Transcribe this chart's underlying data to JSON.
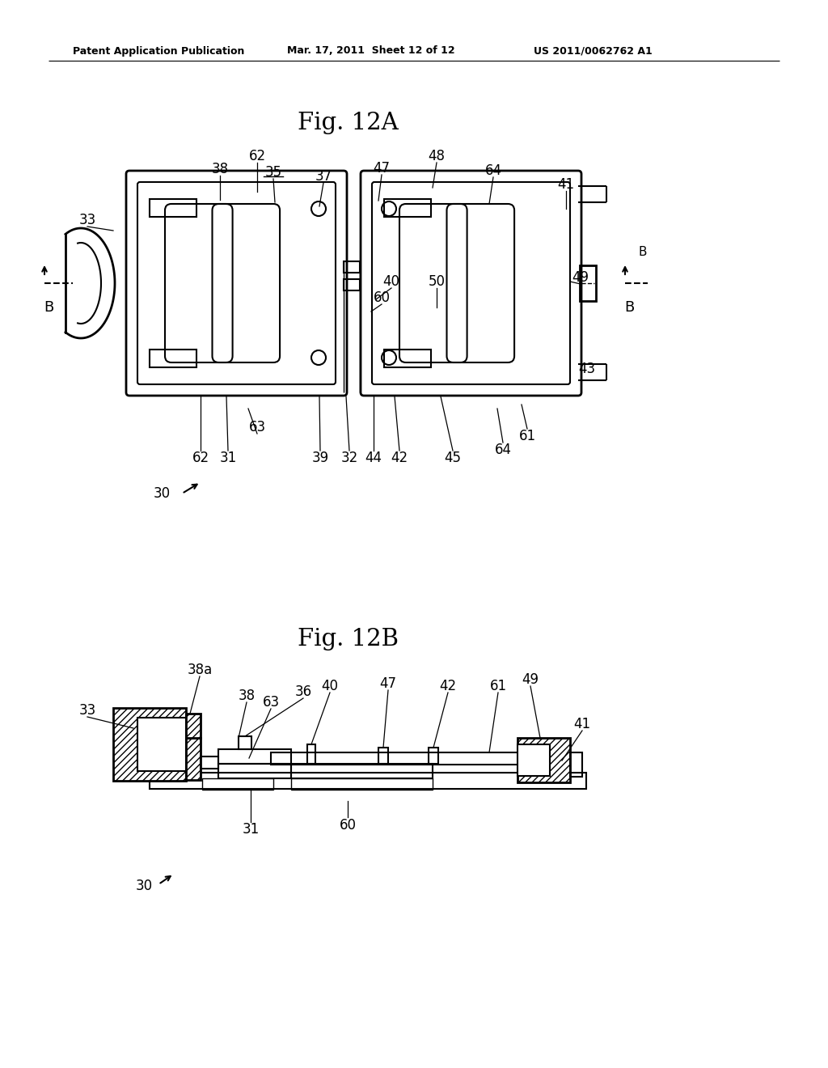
{
  "bg_color": "#ffffff",
  "header_left": "Patent Application Publication",
  "header_mid": "Mar. 17, 2011  Sheet 12 of 12",
  "header_right": "US 2011/0062762 A1",
  "fig12a_title": "Fig. 12A",
  "fig12b_title": "Fig. 12B",
  "line_color": "#000000",
  "fig12a_labels": [
    [
      "62",
      318,
      193
    ],
    [
      "38",
      272,
      209
    ],
    [
      "35",
      338,
      213
    ],
    [
      "37",
      400,
      218
    ],
    [
      "47",
      472,
      208
    ],
    [
      "48",
      540,
      193
    ],
    [
      "64",
      610,
      211
    ],
    [
      "41",
      700,
      228
    ],
    [
      "33",
      108,
      272
    ],
    [
      "40",
      484,
      348
    ],
    [
      "50",
      540,
      348
    ],
    [
      "60",
      472,
      368
    ],
    [
      "49",
      718,
      343
    ],
    [
      "43",
      726,
      456
    ],
    [
      "63",
      318,
      528
    ],
    [
      "39",
      396,
      566
    ],
    [
      "32",
      432,
      566
    ],
    [
      "44",
      462,
      566
    ],
    [
      "42",
      494,
      566
    ],
    [
      "45",
      560,
      566
    ],
    [
      "64",
      622,
      556
    ],
    [
      "61",
      652,
      539
    ],
    [
      "62",
      248,
      566
    ],
    [
      "31",
      282,
      566
    ],
    [
      "30",
      200,
      610
    ]
  ],
  "fig12b_labels": [
    [
      "38a",
      247,
      828
    ],
    [
      "33",
      108,
      878
    ],
    [
      "38",
      305,
      860
    ],
    [
      "63",
      335,
      868
    ],
    [
      "36",
      375,
      855
    ],
    [
      "40",
      408,
      848
    ],
    [
      "47",
      480,
      845
    ],
    [
      "42",
      554,
      848
    ],
    [
      "61",
      616,
      848
    ],
    [
      "49",
      656,
      840
    ],
    [
      "41",
      720,
      895
    ],
    [
      "31",
      310,
      1025
    ],
    [
      "60",
      430,
      1020
    ],
    [
      "30",
      178,
      1095
    ]
  ]
}
